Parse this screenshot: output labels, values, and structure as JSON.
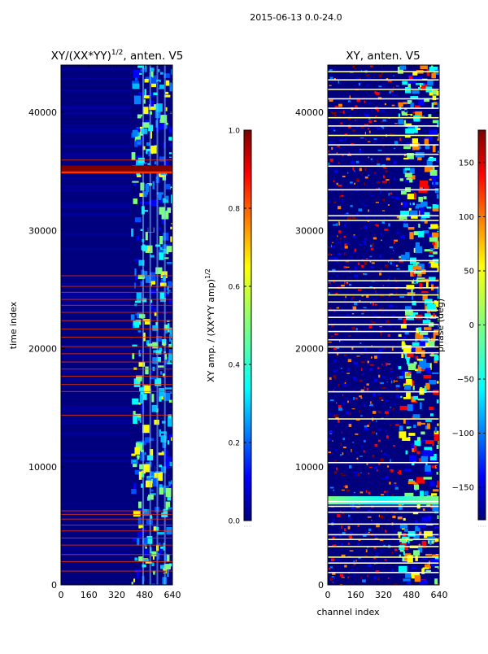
{
  "figure": {
    "suptitle": "2015-06-13 0.0-24.0"
  },
  "colors": {
    "background_low": "#00007f",
    "jet_stops": [
      "#00007f",
      "#0000ff",
      "#007fff",
      "#00ffff",
      "#7fff7f",
      "#ffff00",
      "#ff7f00",
      "#ff0000",
      "#7f0000"
    ]
  },
  "chart_data": [
    {
      "type": "heatmap",
      "title": "XY/(XX*YY)",
      "title_exponent": "1/2",
      "title_suffix": ", anten. V5",
      "ylabel": "time index",
      "xlabel": "",
      "xlim": [
        0,
        640
      ],
      "ylim": [
        0,
        44000
      ],
      "xticks": [
        0,
        160,
        320,
        480,
        640
      ],
      "yticks": [
        0,
        10000,
        20000,
        30000,
        40000
      ],
      "colorbar": {
        "label": "XY amp. / (XX*YY amp)",
        "label_exponent": "1/2",
        "range": [
          0.0,
          1.0
        ],
        "ticks": [
          0.0,
          0.2,
          0.4,
          0.6,
          0.8,
          1.0
        ],
        "tick_labels": [
          "0.0",
          "0.2",
          "0.4",
          "0.6",
          "0.8",
          "1.0"
        ]
      },
      "active_channel_band": [
        400,
        640
      ],
      "flagged_rows": [
        35300,
        36000,
        26200,
        25300,
        24800,
        24200,
        23700,
        23100,
        22400,
        21700,
        21000,
        20200,
        19600,
        18900,
        18300,
        17700,
        17000,
        16400,
        14400,
        6300,
        6000,
        5600,
        5100,
        4600,
        4000,
        3400,
        2600,
        2000,
        1200
      ]
    },
    {
      "type": "heatmap",
      "title": "XY, anten. V5",
      "ylabel": "",
      "xlabel": "channel index",
      "xlim": [
        0,
        640
      ],
      "ylim": [
        0,
        44000
      ],
      "xticks": [
        0,
        160,
        320,
        480,
        640
      ],
      "yticks": [
        0,
        10000,
        20000,
        30000,
        40000
      ],
      "colorbar": {
        "label": "phase (deg)",
        "range": [
          -180,
          180
        ],
        "ticks": [
          -150,
          -100,
          -50,
          0,
          50,
          100,
          150
        ],
        "tick_labels": [
          "−150",
          "−100",
          "−50",
          "0",
          "50",
          "100",
          "150"
        ]
      },
      "active_channel_band": [
        400,
        640
      ],
      "flagged_rows": [
        43500,
        42800,
        42000,
        41200,
        40400,
        39600,
        38900,
        38100,
        37300,
        36500,
        35500,
        33500,
        31300,
        30900,
        27500,
        26600,
        25800,
        25200,
        24600,
        24000,
        23300,
        22700,
        22100,
        21500,
        20800,
        20200,
        19700,
        16400,
        14100,
        10400,
        7100,
        6700,
        6200,
        5200,
        4300,
        3900,
        3300,
        2400,
        1900,
        1100
      ]
    }
  ]
}
